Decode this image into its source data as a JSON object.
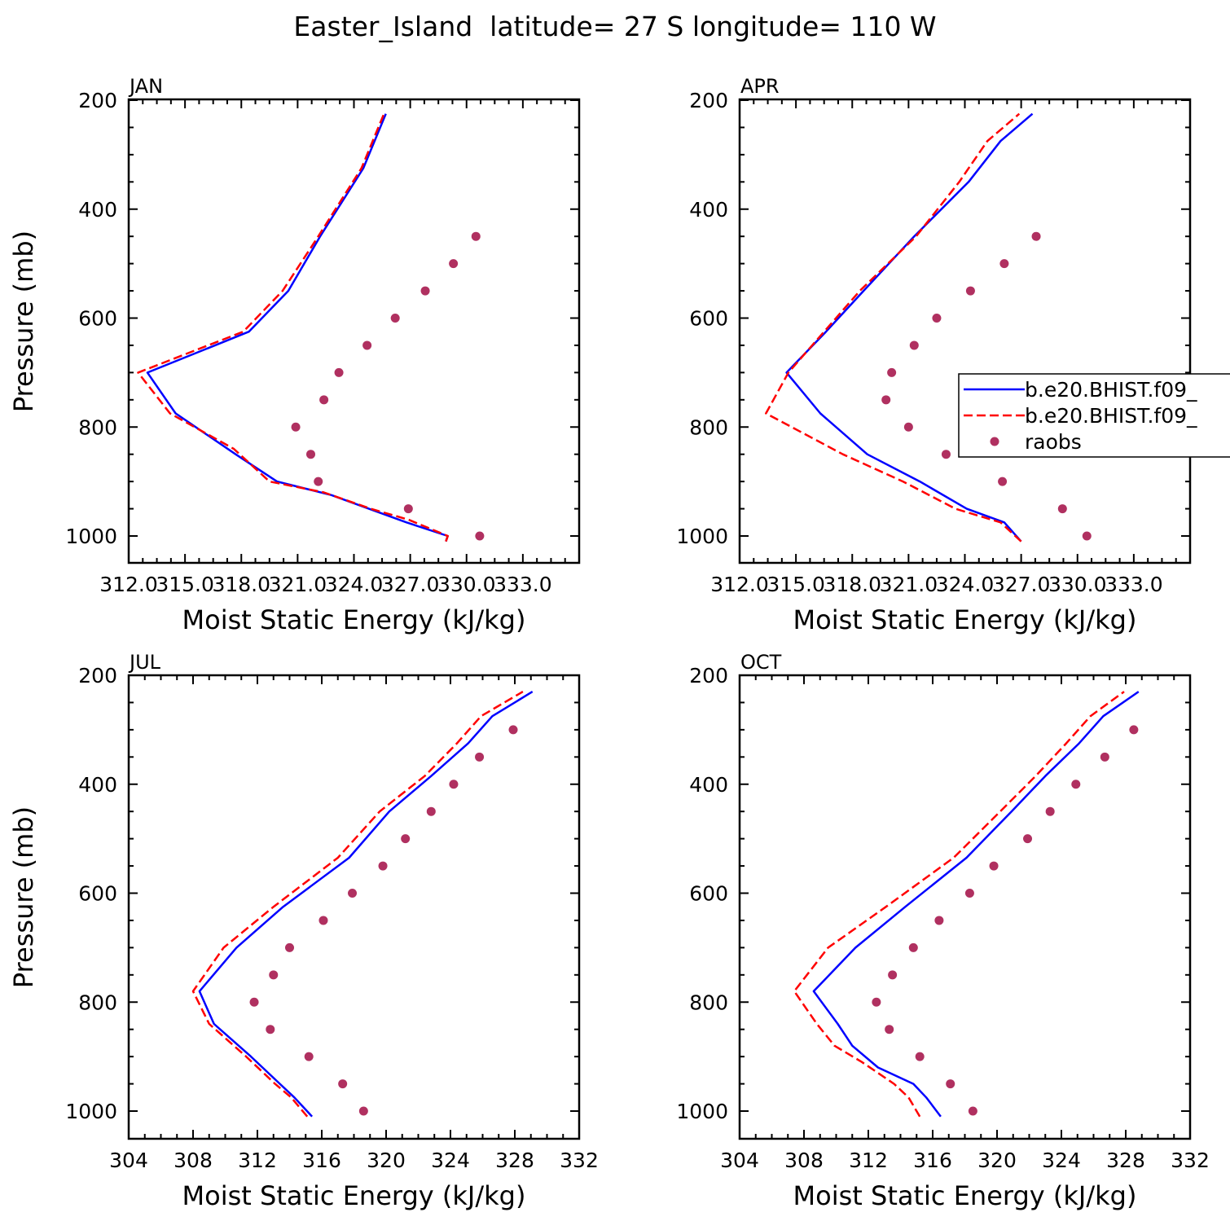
{
  "figure": {
    "title": "Easter_Island  latitude= 27 S longitude= 110 W"
  },
  "legend": {
    "entries": [
      {
        "label": "b.e20.BHIST.f09_",
        "style": "solid",
        "color": "#0000ff"
      },
      {
        "label": "b.e20.BHIST.f09_",
        "style": "dashed",
        "color": "#ff0000"
      },
      {
        "label": "raobs",
        "style": "marker",
        "color": "#b03060"
      }
    ]
  },
  "chart_data": [
    {
      "type": "line",
      "panel": "JAN",
      "title": "JAN",
      "xlabel": "Moist Static Energy (kJ/kg)",
      "ylabel": "Pressure (mb)",
      "xlim": [
        312,
        336
      ],
      "ylim": [
        1010,
        200
      ],
      "xticks": [
        312,
        315,
        318,
        321,
        324,
        327,
        330,
        333
      ],
      "xtick_labels": [
        "312.0",
        "315.0",
        "318.0",
        "321.0",
        "324.0",
        "327.0",
        "330.0",
        "333.0"
      ],
      "yticks": [
        200,
        400,
        600,
        800,
        1000
      ],
      "y_reversed": true,
      "series": [
        {
          "name": "b.e20.BHIST.f09_",
          "style": "solid",
          "color": "#0000ff",
          "x": [
            328.9,
            329.0,
            326.8,
            324.8,
            322.8,
            319.9,
            317.7,
            314.5,
            313.0,
            318.4,
            320.5,
            322.2,
            324.5,
            325.7
          ],
          "y": [
            1010,
            1000,
            975,
            950,
            925,
            900,
            850,
            775,
            700,
            625,
            550,
            450,
            325,
            225
          ]
        },
        {
          "name": "b.e20.BHIST.f09_",
          "style": "dashed",
          "color": "#ff0000",
          "x": [
            328.9,
            329.0,
            326.9,
            324.9,
            322.4,
            319.5,
            317.6,
            314.2,
            312.5,
            318.1,
            320.2,
            322.1,
            324.4,
            325.6
          ],
          "y": [
            1010,
            1000,
            970,
            950,
            920,
            900,
            840,
            775,
            700,
            625,
            550,
            450,
            325,
            225
          ]
        },
        {
          "name": "raobs",
          "style": "marker",
          "color": "#b03060",
          "x": [
            330.7,
            326.9,
            322.1,
            321.7,
            320.9,
            322.4,
            323.2,
            324.7,
            326.2,
            327.8,
            329.3,
            330.5
          ],
          "y": [
            1000,
            950,
            900,
            850,
            800,
            750,
            700,
            650,
            600,
            550,
            500,
            450
          ]
        }
      ]
    },
    {
      "type": "line",
      "panel": "APR",
      "title": "APR",
      "xlabel": "Moist Static Energy (kJ/kg)",
      "ylabel": "",
      "xlim": [
        312,
        336
      ],
      "ylim": [
        1010,
        200
      ],
      "xticks": [
        312,
        315,
        318,
        321,
        324,
        327,
        330,
        333
      ],
      "xtick_labels": [
        "312.0",
        "315.0",
        "318.0",
        "321.0",
        "324.0",
        "327.0",
        "330.0",
        "333.0"
      ],
      "yticks": [
        200,
        400,
        600,
        800,
        1000
      ],
      "y_reversed": true,
      "series": [
        {
          "name": "b.e20.BHIST.f09_",
          "style": "solid",
          "color": "#0000ff",
          "x": [
            327.0,
            326.1,
            324.1,
            321.6,
            318.8,
            316.3,
            314.5,
            316.6,
            318.6,
            321.3,
            324.2,
            325.9,
            327.6
          ],
          "y": [
            1010,
            975,
            950,
            900,
            850,
            775,
            700,
            625,
            550,
            450,
            350,
            275,
            225
          ]
        },
        {
          "name": "b.e20.BHIST.f09_",
          "style": "dashed",
          "color": "#ff0000",
          "x": [
            327.0,
            325.9,
            323.5,
            320.7,
            317.5,
            313.4,
            314.6,
            316.5,
            318.4,
            321.4,
            323.7,
            325.2,
            326.9
          ],
          "y": [
            1010,
            975,
            950,
            900,
            850,
            775,
            700,
            625,
            550,
            450,
            350,
            275,
            225
          ]
        },
        {
          "name": "raobs",
          "style": "marker",
          "color": "#b03060",
          "x": [
            330.5,
            329.2,
            326.0,
            323.0,
            321.0,
            319.8,
            320.1,
            321.3,
            322.5,
            324.3,
            326.1,
            327.8
          ],
          "y": [
            1000,
            950,
            900,
            850,
            800,
            750,
            700,
            650,
            600,
            550,
            500,
            450
          ]
        }
      ]
    },
    {
      "type": "line",
      "panel": "JUL",
      "title": "JUL",
      "xlabel": "Moist Static Energy (kJ/kg)",
      "ylabel": "Pressure (mb)",
      "xlim": [
        304,
        332
      ],
      "ylim": [
        1010,
        200
      ],
      "xticks": [
        304,
        308,
        312,
        316,
        320,
        324,
        328,
        332
      ],
      "xtick_labels": [
        "304",
        "308",
        "312",
        "316",
        "320",
        "324",
        "328",
        "332"
      ],
      "yticks": [
        200,
        400,
        600,
        800,
        1000
      ],
      "y_reversed": true,
      "series": [
        {
          "name": "b.e20.BHIST.f09_",
          "style": "solid",
          "color": "#0000ff",
          "x": [
            315.4,
            314.3,
            313.4,
            311.6,
            309.3,
            308.4,
            310.7,
            313.6,
            317.7,
            320.2,
            322.8,
            325.1,
            326.6,
            329.1
          ],
          "y": [
            1010,
            975,
            950,
            900,
            840,
            780,
            700,
            625,
            535,
            450,
            385,
            325,
            275,
            230
          ]
        },
        {
          "name": "b.e20.BHIST.f09_",
          "style": "dashed",
          "color": "#ff0000",
          "x": [
            315.1,
            314.1,
            313.1,
            311.3,
            309.0,
            308.0,
            309.9,
            313.0,
            317.0,
            319.6,
            322.4,
            324.4,
            325.9,
            328.5
          ],
          "y": [
            1010,
            975,
            950,
            900,
            840,
            780,
            700,
            625,
            535,
            450,
            385,
            325,
            275,
            230
          ]
        },
        {
          "name": "raobs",
          "style": "marker",
          "color": "#b03060",
          "x": [
            318.6,
            317.3,
            315.2,
            312.8,
            311.8,
            313.0,
            314.0,
            316.1,
            317.9,
            319.8,
            321.2,
            322.8,
            324.2,
            325.8,
            327.9
          ],
          "y": [
            1000,
            950,
            900,
            850,
            800,
            750,
            700,
            650,
            600,
            550,
            500,
            450,
            400,
            350,
            300
          ]
        }
      ]
    },
    {
      "type": "line",
      "panel": "OCT",
      "title": "OCT",
      "xlabel": "Moist Static Energy (kJ/kg)",
      "ylabel": "",
      "xlim": [
        304,
        332
      ],
      "ylim": [
        1010,
        200
      ],
      "xticks": [
        304,
        308,
        312,
        316,
        320,
        324,
        328,
        332
      ],
      "xtick_labels": [
        "304",
        "308",
        "312",
        "316",
        "320",
        "324",
        "328",
        "332"
      ],
      "yticks": [
        200,
        400,
        600,
        800,
        1000
      ],
      "y_reversed": true,
      "series": [
        {
          "name": "b.e20.BHIST.f09_",
          "style": "solid",
          "color": "#0000ff",
          "x": [
            316.5,
            315.6,
            314.8,
            312.6,
            311.0,
            310.1,
            308.6,
            311.2,
            314.3,
            318.1,
            320.9,
            323.0,
            325.1,
            326.6,
            328.8
          ],
          "y": [
            1010,
            975,
            950,
            920,
            880,
            840,
            780,
            700,
            625,
            535,
            450,
            385,
            325,
            275,
            230
          ]
        },
        {
          "name": "b.e20.BHIST.f09_",
          "style": "dashed",
          "color": "#ff0000",
          "x": [
            315.2,
            314.5,
            313.6,
            311.6,
            309.9,
            308.8,
            307.4,
            309.5,
            313.1,
            317.3,
            320.2,
            322.4,
            324.3,
            325.8,
            327.9
          ],
          "y": [
            1010,
            975,
            950,
            910,
            880,
            840,
            780,
            700,
            625,
            535,
            450,
            385,
            325,
            275,
            230
          ]
        },
        {
          "name": "raobs",
          "style": "marker",
          "color": "#b03060",
          "x": [
            318.5,
            317.1,
            315.2,
            313.3,
            312.5,
            313.5,
            314.8,
            316.4,
            318.3,
            319.8,
            321.9,
            323.3,
            324.9,
            326.7,
            328.5
          ],
          "y": [
            1000,
            950,
            900,
            850,
            800,
            750,
            700,
            650,
            600,
            550,
            500,
            450,
            400,
            350,
            300
          ]
        }
      ]
    }
  ]
}
